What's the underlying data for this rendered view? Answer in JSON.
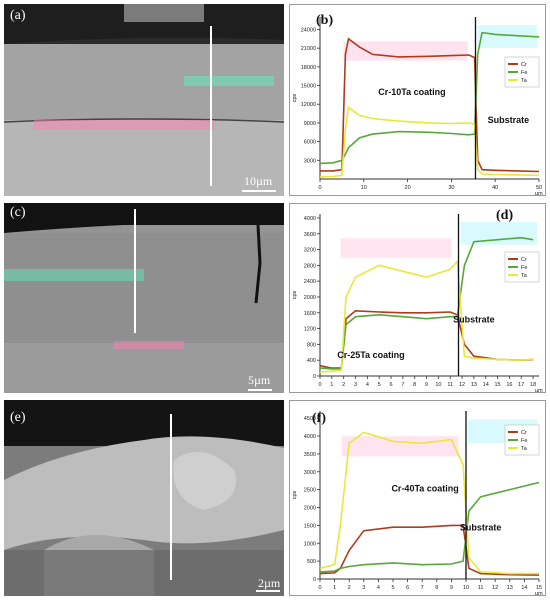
{
  "sem_panels": [
    {
      "id": "a",
      "label": "(a)",
      "scale_label": "10µm"
    },
    {
      "id": "c",
      "label": "(c)",
      "scale_label": "5µm"
    },
    {
      "id": "e",
      "label": "(e)",
      "scale_label": "2µm"
    }
  ],
  "chart_data": [
    {
      "id": "b",
      "type": "line",
      "panel_label": "(b)",
      "ylabel": "cps",
      "xlabel": "µm",
      "xlim": [
        0,
        50
      ],
      "ylim": [
        0,
        26000
      ],
      "xticks": [
        0,
        10,
        20,
        30,
        40,
        50
      ],
      "yticks": [
        3000,
        6000,
        9000,
        12000,
        15000,
        18000,
        21000,
        24000
      ],
      "legend_position": "right",
      "boundary_x": 35.5,
      "annotations": [
        {
          "text": "Cr-10Ta coating",
          "x": 21,
          "y": 13500
        },
        {
          "text": "Substrate",
          "x": 43,
          "y": 9000
        }
      ],
      "series": [
        {
          "name": "Cr",
          "color": "#b03a1e",
          "x": [
            0,
            3,
            5,
            5.8,
            6.5,
            9,
            12,
            18,
            25,
            30,
            34,
            35.3,
            36,
            37,
            40,
            45,
            50
          ],
          "y": [
            1300,
            1300,
            1500,
            20000,
            22500,
            21200,
            20000,
            19600,
            19700,
            19800,
            19900,
            19500,
            3000,
            1500,
            1400,
            1300,
            1200
          ]
        },
        {
          "name": "Fe",
          "color": "#57a838",
          "x": [
            0,
            3,
            5,
            5.8,
            6.5,
            9,
            12,
            18,
            25,
            30,
            34,
            35.3,
            36,
            37,
            40,
            45,
            50
          ],
          "y": [
            2500,
            2600,
            3000,
            4000,
            5000,
            6600,
            7200,
            7600,
            7500,
            7300,
            7100,
            7200,
            20000,
            23500,
            23200,
            23000,
            22800
          ]
        },
        {
          "name": "Ta",
          "color": "#e8e83a",
          "x": [
            0,
            3,
            5,
            5.8,
            6.5,
            9,
            12,
            18,
            25,
            30,
            34,
            35.3,
            36,
            37,
            40,
            45,
            50
          ],
          "y": [
            300,
            400,
            600,
            8000,
            11500,
            10200,
            9700,
            9300,
            9000,
            8900,
            9000,
            8800,
            1500,
            800,
            700,
            650,
            600
          ]
        }
      ]
    },
    {
      "id": "d",
      "type": "line",
      "panel_label": "(d)",
      "ylabel": "cps",
      "xlabel": "µm",
      "xlim": [
        0,
        18.5
      ],
      "ylim": [
        0,
        4100
      ],
      "xticks": [
        0,
        1,
        2,
        3,
        4,
        5,
        6,
        7,
        8,
        9,
        10,
        11,
        12,
        13,
        14,
        15,
        16,
        17,
        18
      ],
      "yticks": [
        0,
        400,
        800,
        1200,
        1600,
        2000,
        2400,
        2800,
        3200,
        3600,
        4000
      ],
      "legend_position": "right",
      "boundary_x": 11.7,
      "annotations": [
        {
          "text": "Substrate",
          "x": 13,
          "y": 1350
        },
        {
          "text": "Cr-25Ta coating",
          "x": 4.3,
          "y": 450
        }
      ],
      "series": [
        {
          "name": "Cr",
          "color": "#b03a1e",
          "x": [
            0,
            1,
            1.8,
            2.2,
            3,
            5,
            7,
            9,
            11,
            11.6,
            12.2,
            13,
            15,
            17,
            18
          ],
          "y": [
            260,
            200,
            200,
            1450,
            1650,
            1620,
            1600,
            1600,
            1620,
            1550,
            800,
            500,
            420,
            400,
            420
          ]
        },
        {
          "name": "Fe",
          "color": "#57a838",
          "x": [
            0,
            1,
            1.8,
            2.2,
            3,
            5,
            7,
            9,
            11,
            11.6,
            12.2,
            13,
            15,
            17,
            18
          ],
          "y": [
            200,
            180,
            180,
            1300,
            1500,
            1550,
            1500,
            1450,
            1500,
            1500,
            2800,
            3400,
            3450,
            3500,
            3450
          ]
        },
        {
          "name": "Ta",
          "color": "#e8e83a",
          "x": [
            0,
            1,
            1.8,
            2.2,
            3,
            5,
            7,
            9,
            11,
            11.6,
            12.2,
            13,
            15,
            17,
            18
          ],
          "y": [
            100,
            120,
            150,
            2000,
            2500,
            2800,
            2650,
            2500,
            2700,
            2900,
            500,
            450,
            420,
            400,
            430
          ]
        }
      ]
    },
    {
      "id": "f",
      "type": "line",
      "panel_label": "(f)",
      "ylabel": "cps",
      "xlabel": "µm",
      "xlim": [
        0,
        15
      ],
      "ylim": [
        0,
        4700
      ],
      "xticks": [
        0,
        1,
        2,
        3,
        4,
        5,
        6,
        7,
        8,
        9,
        10,
        11,
        12,
        13,
        14,
        15
      ],
      "yticks": [
        0,
        500,
        1000,
        1500,
        2000,
        2500,
        3000,
        3500,
        4000,
        4500
      ],
      "legend_position": "right",
      "boundary_x": 10,
      "annotations": [
        {
          "text": "Cr-40Ta coating",
          "x": 7.2,
          "y": 2450
        },
        {
          "text": "Substrate",
          "x": 11,
          "y": 1350
        }
      ],
      "series": [
        {
          "name": "Cr",
          "color": "#b03a1e",
          "x": [
            0,
            1,
            1.4,
            2,
            3,
            5,
            7,
            9,
            9.8,
            10.2,
            11,
            13,
            15
          ],
          "y": [
            150,
            170,
            300,
            800,
            1350,
            1450,
            1450,
            1500,
            1500,
            300,
            150,
            120,
            110
          ]
        },
        {
          "name": "Fe",
          "color": "#57a838",
          "x": [
            0,
            1,
            1.4,
            2,
            3,
            5,
            7,
            9,
            9.8,
            10.2,
            11,
            13,
            15
          ],
          "y": [
            200,
            220,
            300,
            350,
            400,
            450,
            400,
            420,
            500,
            1900,
            2300,
            2500,
            2700
          ]
        },
        {
          "name": "Ta",
          "color": "#e8e83a",
          "x": [
            0,
            1,
            1.4,
            2,
            3,
            5,
            7,
            9,
            9.8,
            10.2,
            11,
            13,
            15
          ],
          "y": [
            300,
            400,
            1500,
            3800,
            4100,
            3850,
            3800,
            3900,
            3200,
            600,
            200,
            150,
            150
          ]
        }
      ]
    }
  ]
}
